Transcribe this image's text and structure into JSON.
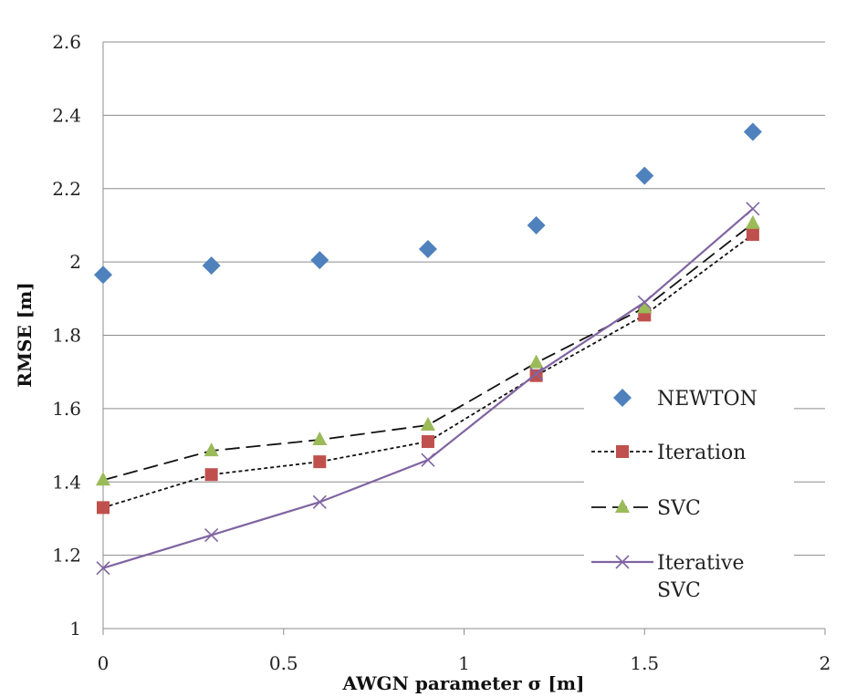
{
  "chart_data": {
    "type": "line",
    "title": "",
    "xlabel": "AWGN parameter σ [m]",
    "ylabel": "RMSE [m]",
    "xlim": [
      0,
      2
    ],
    "ylim": [
      1,
      2.6
    ],
    "xticks": [
      "0",
      "0.5",
      "1",
      "1.5",
      "2"
    ],
    "yticks": [
      "1",
      "1.2",
      "1.4",
      "1.6",
      "1.8",
      "2",
      "2.2",
      "2.4",
      "2.6"
    ],
    "grid": "horizontal",
    "legend_position": "right",
    "x": [
      0,
      0.3,
      0.6,
      0.9,
      1.2,
      1.5,
      1.8
    ],
    "series": [
      {
        "name": "NEWTON",
        "values": [
          1.965,
          1.99,
          2.005,
          2.035,
          2.1,
          2.235,
          2.355
        ],
        "color": "#4f81bd",
        "marker": "diamond",
        "line": "none"
      },
      {
        "name": "Iteration",
        "values": [
          1.33,
          1.42,
          1.455,
          1.51,
          1.69,
          1.855,
          2.075
        ],
        "color": "#c0504d",
        "marker": "square",
        "line": "dotted"
      },
      {
        "name": "SVC",
        "values": [
          1.405,
          1.485,
          1.515,
          1.555,
          1.725,
          1.875,
          2.105
        ],
        "color": "#9bbb59",
        "marker": "triangle",
        "line": "dashed"
      },
      {
        "name_lines": [
          "Iterative",
          "SVC"
        ],
        "values": [
          1.165,
          1.255,
          1.345,
          1.46,
          1.695,
          1.89,
          2.145
        ],
        "color": "#8064a2",
        "marker": "x",
        "line": "solid"
      }
    ]
  }
}
